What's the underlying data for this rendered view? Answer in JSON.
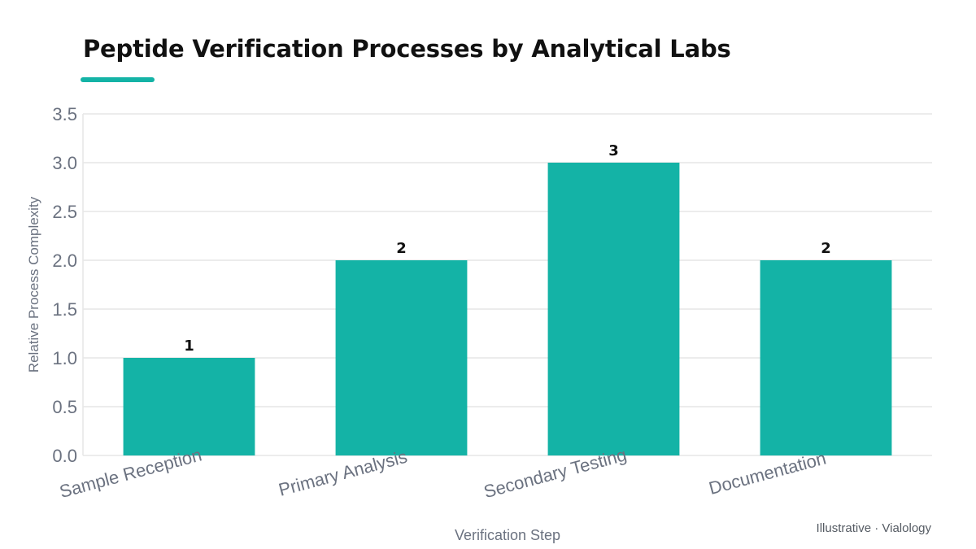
{
  "header": {
    "title": "Peptide Verification Processes by Analytical Labs",
    "credit": "Illustrative · Vialology"
  },
  "colors": {
    "bar": "#14b3a6",
    "accent": "#14b3a6",
    "grid": "#e6e6e6",
    "tick_text": "#6b7280",
    "title_text": "#111111",
    "value_label": "#111111"
  },
  "chart_data": {
    "type": "bar",
    "categories": [
      "Sample Reception",
      "Primary Analysis",
      "Secondary Testing",
      "Documentation"
    ],
    "values": [
      1,
      2,
      3,
      2
    ],
    "value_labels": [
      "1",
      "2",
      "3",
      "2"
    ],
    "xlabel": "Verification Step",
    "ylabel": "Relative Process Complexity",
    "ylim": [
      0,
      3.5
    ],
    "yticks": [
      "0.0",
      "0.5",
      "1.0",
      "1.5",
      "2.0",
      "2.5",
      "3.0",
      "3.5"
    ],
    "grid": true,
    "legend": "none"
  }
}
